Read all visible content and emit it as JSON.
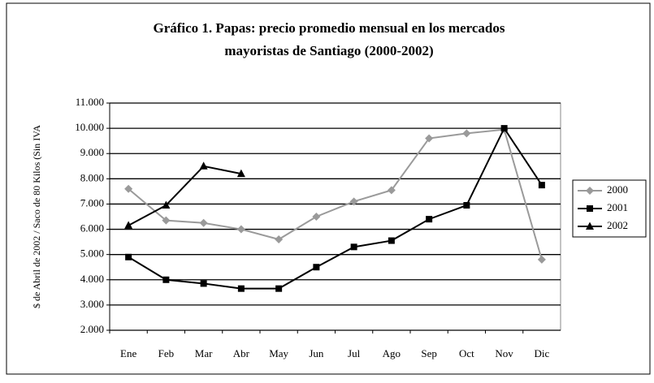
{
  "chart_data": {
    "type": "line",
    "title": [
      "Gráfico 1. Papas: precio promedio mensual en los mercados",
      "mayoristas de Santiago (2000-2002)"
    ],
    "y_label": "$ de Abril de 2002 / Saco de 80 Kilos (Sin IVA",
    "categories": [
      "Ene",
      "Feb",
      "Mar",
      "Abr",
      "May",
      "Jun",
      "Jul",
      "Ago",
      "Sep",
      "Oct",
      "Nov",
      "Dic"
    ],
    "series": [
      {
        "name": "2000",
        "color": "#9a9a9a",
        "marker": "diamond",
        "values": [
          7600,
          6350,
          6250,
          6000,
          5600,
          6500,
          7100,
          7550,
          9600,
          9800,
          9950,
          4800
        ]
      },
      {
        "name": "2001",
        "color": "#000000",
        "marker": "square",
        "values": [
          4900,
          4000,
          3850,
          3650,
          3650,
          4500,
          5300,
          5550,
          6400,
          6950,
          10000,
          7750
        ]
      },
      {
        "name": "2002",
        "color": "#000000",
        "marker": "triangle",
        "values": [
          6150,
          6950,
          8500,
          8200,
          null,
          null,
          null,
          null,
          null,
          null,
          null,
          null
        ]
      }
    ],
    "ylim": [
      2000,
      11000
    ],
    "yticks": [
      {
        "value": 2000,
        "label": "2.000"
      },
      {
        "value": 3000,
        "label": "3.000"
      },
      {
        "value": 4000,
        "label": "4.000"
      },
      {
        "value": 5000,
        "label": "5.000"
      },
      {
        "value": 6000,
        "label": "6.000"
      },
      {
        "value": 7000,
        "label": "7.000"
      },
      {
        "value": 8000,
        "label": "8.000"
      },
      {
        "value": 9000,
        "label": "9.000"
      },
      {
        "value": 10000,
        "label": "10.000"
      },
      {
        "value": 11000,
        "label": "11.000"
      }
    ],
    "grid": true,
    "legend": "right"
  }
}
